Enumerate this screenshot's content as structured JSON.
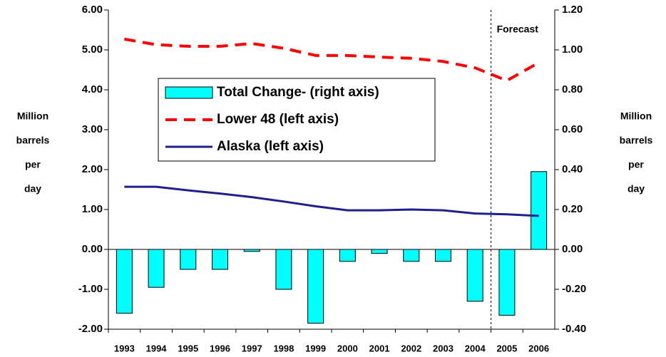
{
  "chart_data": {
    "type": "bar-line",
    "categories": [
      "1993",
      "1994",
      "1995",
      "1996",
      "1997",
      "1998",
      "1999",
      "2000",
      "2001",
      "2002",
      "2003",
      "2004",
      "2005",
      "2006"
    ],
    "series": [
      {
        "name": "Total Change- (right axis)",
        "type": "bar",
        "axis": "y2",
        "color": "#00ffff",
        "values": [
          -0.32,
          -0.19,
          -0.1,
          -0.1,
          -0.01,
          -0.2,
          -0.37,
          -0.06,
          -0.02,
          -0.06,
          -0.06,
          -0.26,
          -0.33,
          0.39
        ]
      },
      {
        "name": "Lower 48 (left axis)",
        "type": "line",
        "style": "dashed",
        "color": "#ff0000",
        "values": [
          5.27,
          5.13,
          5.09,
          5.09,
          5.16,
          5.04,
          4.86,
          4.86,
          4.82,
          4.79,
          4.71,
          4.55,
          4.23,
          4.68
        ]
      },
      {
        "name": "Alaska (left axis)",
        "type": "line",
        "style": "solid",
        "color": "#1f1f8f",
        "values": [
          1.57,
          1.57,
          1.48,
          1.4,
          1.31,
          1.2,
          1.08,
          0.98,
          0.98,
          1.0,
          0.98,
          0.9,
          0.88,
          0.84
        ]
      }
    ],
    "ylim": [
      -2,
      6
    ],
    "yticks": [
      {
        "value": 6,
        "label": "6.00"
      },
      {
        "value": 5,
        "label": "5.00"
      },
      {
        "value": 4,
        "label": "4.00"
      },
      {
        "value": 3,
        "label": "3.00"
      },
      {
        "value": 2,
        "label": "2.00"
      },
      {
        "value": 1,
        "label": "1.00"
      },
      {
        "value": 0,
        "label": "0.00"
      },
      {
        "value": -1,
        "label": "-1.00"
      },
      {
        "value": -2,
        "label": "-2.00"
      }
    ],
    "y2lim": [
      -0.4,
      1.2
    ],
    "y2ticks": [
      {
        "value": 1.2,
        "label": "1.20"
      },
      {
        "value": 1,
        "label": "1.00"
      },
      {
        "value": 0.8,
        "label": "0.80"
      },
      {
        "value": 0.6,
        "label": "0.60"
      },
      {
        "value": 0.4,
        "label": "0.40"
      },
      {
        "value": 0.2,
        "label": "0.20"
      },
      {
        "value": 0,
        "label": "0.00"
      },
      {
        "value": -0.2,
        "label": "-0.20"
      },
      {
        "value": -0.4,
        "label": "-0.40"
      }
    ],
    "ylabel": [
      "Million",
      "barrels",
      "per",
      "day"
    ],
    "y2label": [
      "Million",
      "barrels",
      "per",
      "day"
    ],
    "annotations": [
      {
        "text": "Forecast"
      }
    ],
    "legend": "center-left"
  }
}
